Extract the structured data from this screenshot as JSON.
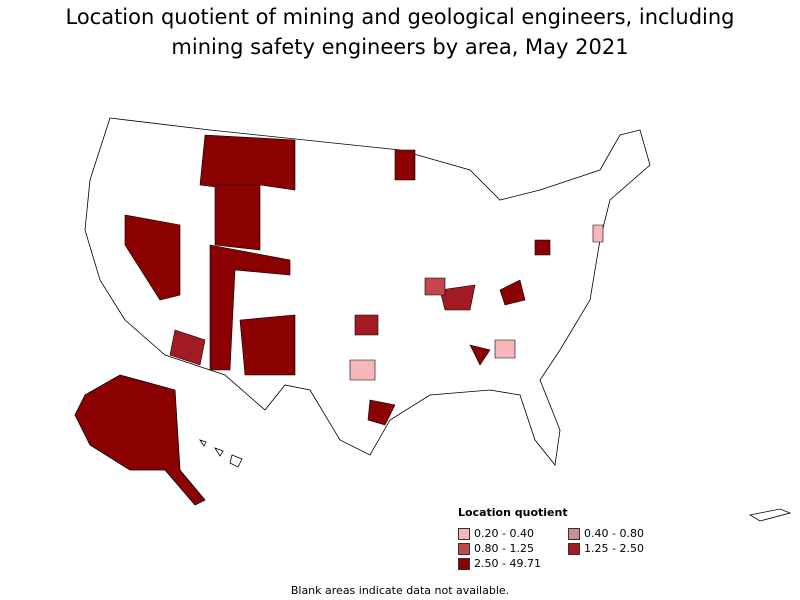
{
  "title": "Location quotient of mining and geological engineers, including mining safety engineers by area, May 2021",
  "legend": {
    "title": "Location quotient",
    "items": [
      {
        "label": "0.20 - 0.40",
        "color": "#f7b6ba"
      },
      {
        "label": "0.40 - 0.80",
        "color": "#c98f8f"
      },
      {
        "label": "0.80 - 1.25",
        "color": "#c4454e"
      },
      {
        "label": "1.25 - 2.50",
        "color": "#a31a22"
      },
      {
        "label": "2.50 - 49.71",
        "color": "#8b0000"
      }
    ]
  },
  "note": "Blank areas indicate data not available."
}
